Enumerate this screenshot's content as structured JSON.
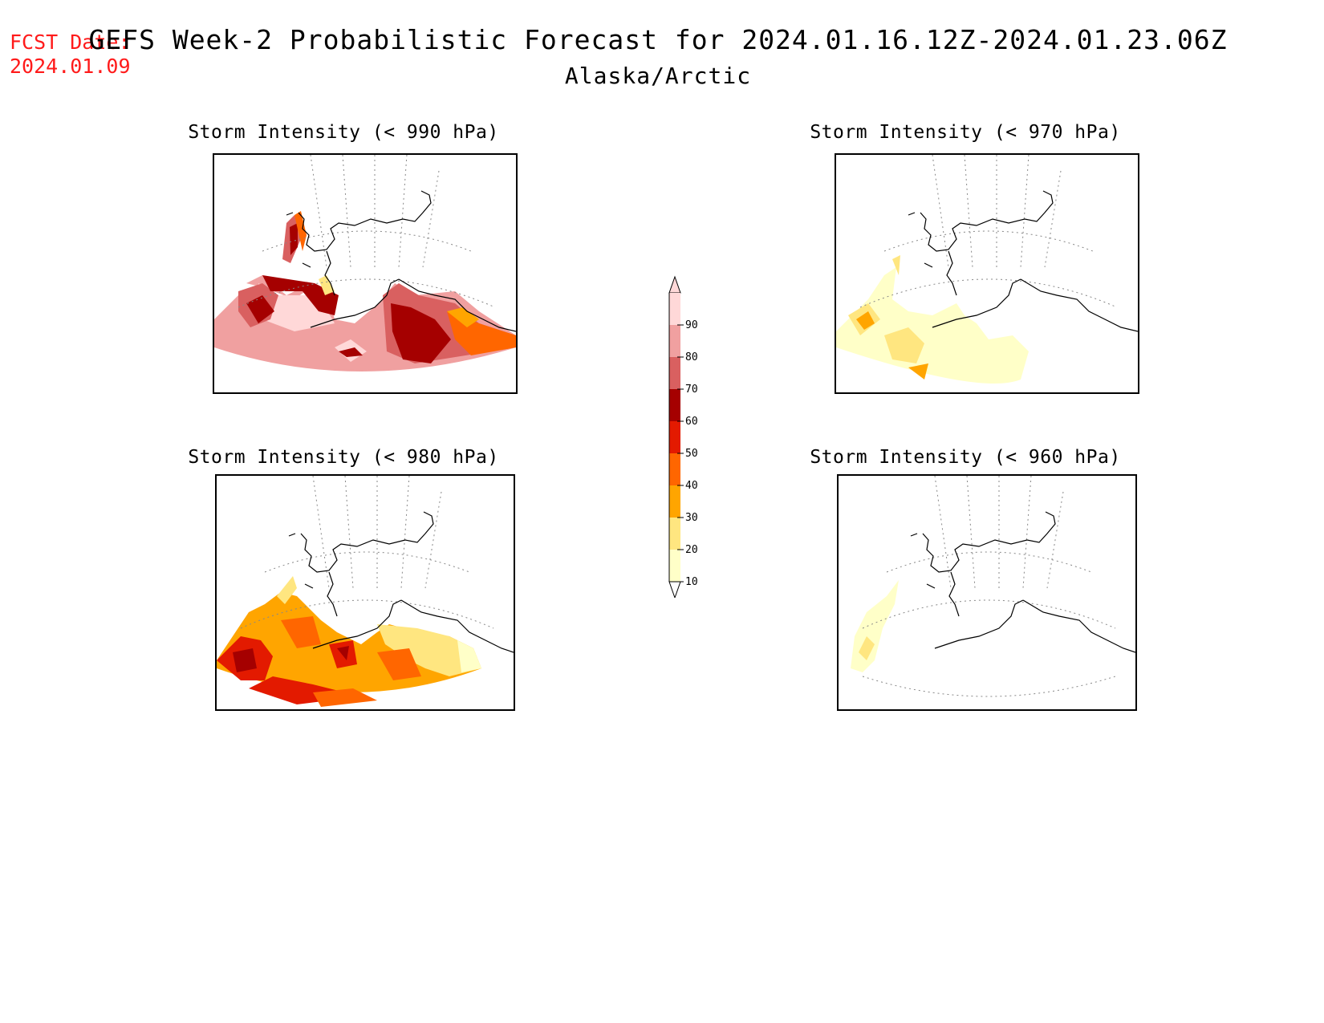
{
  "header": {
    "fcst_label": "FCST Date:",
    "fcst_date": "2024.01.09",
    "title": "GEFS Week-2 Probabilistic Forecast for 2024.01.16.12Z-2024.01.23.06Z",
    "subtitle": "Alaska/Arctic"
  },
  "panels": [
    {
      "id": "p990",
      "title": "Storm Intensity (< 990 hPa)",
      "threshold_hPa": 990,
      "max_probability_class": 80
    },
    {
      "id": "p970",
      "title": "Storm Intensity (< 970 hPa)",
      "threshold_hPa": 970,
      "max_probability_class": 40
    },
    {
      "id": "p980",
      "title": "Storm Intensity (< 980 hPa)",
      "threshold_hPa": 980,
      "max_probability_class": 60
    },
    {
      "id": "p960",
      "title": "Storm Intensity (< 960 hPa)",
      "threshold_hPa": 960,
      "max_probability_class": 20
    }
  ],
  "colorbar": {
    "ticks": [
      "10",
      "20",
      "30",
      "40",
      "50",
      "60",
      "70",
      "80",
      "90"
    ],
    "colors": [
      "#ffffc8",
      "#ffe680",
      "#ffa500",
      "#ff6600",
      "#e31a00",
      "#a50000",
      "#d96060",
      "#f0a0a0",
      "#ffd8d8"
    ]
  }
}
